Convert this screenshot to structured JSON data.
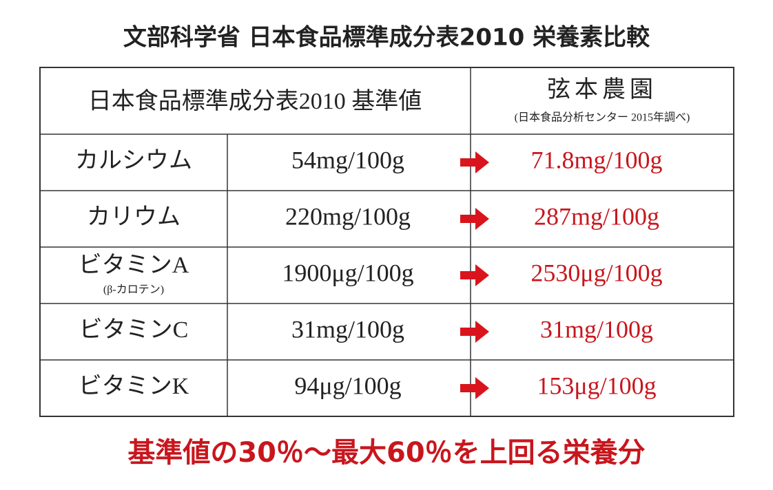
{
  "title": "文部科学省 日本食品標準成分表2010 栄養素比較",
  "table": {
    "header": {
      "standard": "日本食品標準成分表2010 基準値",
      "farm": "弦本農園",
      "farm_note": "(日本食品分析センター 2015年調べ)"
    },
    "rows": [
      {
        "nutrient": "カルシウム",
        "standard": "54mg/100g",
        "farm": "71.8mg/100g"
      },
      {
        "nutrient": "カリウム",
        "standard": "220mg/100g",
        "farm": "287mg/100g"
      },
      {
        "nutrient": "ビタミンA",
        "note": "(β-カロテン)",
        "standard": "1900μg/100g",
        "farm": "2530μg/100g"
      },
      {
        "nutrient": "ビタミンC",
        "standard": "31mg/100g",
        "farm": "31mg/100g"
      },
      {
        "nutrient": "ビタミンK",
        "standard": "94μg/100g",
        "farm": "153μg/100g"
      }
    ]
  },
  "footer": "基準値の30％〜最大60％を上回る栄養分"
}
